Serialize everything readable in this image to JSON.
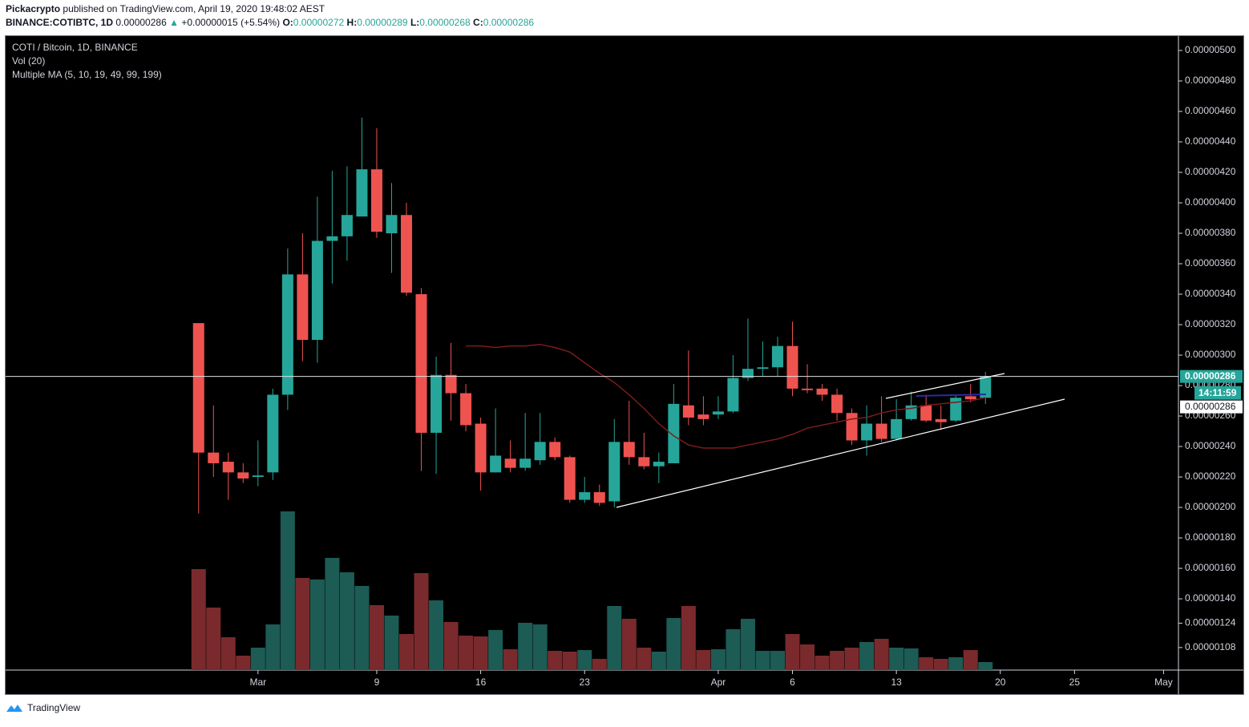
{
  "header": {
    "author": "Pickacrypto",
    "published": "published on TradingView.com, April 19, 2020 19:48:02 AEST",
    "symbol": "BINANCE:COTIBTC, 1D",
    "last": "0.00000286",
    "change": "+0.00000015 (+5.54%)",
    "o_label": "O:",
    "o": "0.00000272",
    "h_label": "H:",
    "h": "0.00000289",
    "l_label": "L:",
    "l": "0.00000268",
    "c_label": "C:",
    "c": "0.00000286"
  },
  "footer": {
    "brand": "TradingView"
  },
  "chart_data": {
    "type": "candlestick",
    "title": "COTI / Bitcoin, 1D, BINANCE",
    "x": [
      "02-26",
      "02-27",
      "02-28",
      "02-29",
      "03-01",
      "03-02",
      "03-03",
      "03-04",
      "03-05",
      "03-06",
      "03-07",
      "03-08",
      "03-09",
      "03-10",
      "03-11",
      "03-12",
      "03-13",
      "03-14",
      "03-15",
      "03-16",
      "03-17",
      "03-18",
      "03-19",
      "03-20",
      "03-21",
      "03-22",
      "03-23",
      "03-24",
      "03-25",
      "03-26",
      "03-27",
      "03-28",
      "03-29",
      "03-30",
      "03-31",
      "04-01",
      "04-02",
      "04-03",
      "04-04",
      "04-05",
      "04-06",
      "04-07",
      "04-08",
      "04-09",
      "04-10",
      "04-11",
      "04-12",
      "04-13",
      "04-14",
      "04-15",
      "04-16",
      "04-17",
      "04-18",
      "04-19"
    ],
    "open": [
      3.21e-06,
      2.36e-06,
      2.3e-06,
      2.23e-06,
      2.2e-06,
      2.23e-06,
      2.74e-06,
      3.53e-06,
      3.1e-06,
      3.75e-06,
      3.78e-06,
      3.91e-06,
      4.22e-06,
      3.8e-06,
      3.92e-06,
      3.4e-06,
      2.49e-06,
      2.87e-06,
      2.75e-06,
      2.55e-06,
      2.23e-06,
      2.32e-06,
      2.26e-06,
      2.31e-06,
      2.43e-06,
      2.33e-06,
      2.05e-06,
      2.1e-06,
      2.04e-06,
      2.43e-06,
      2.33e-06,
      2.27e-06,
      2.29e-06,
      2.67e-06,
      2.61e-06,
      2.61e-06,
      2.63e-06,
      2.85e-06,
      2.91e-06,
      2.92e-06,
      3.06e-06,
      2.78e-06,
      2.78e-06,
      2.74e-06,
      2.62e-06,
      2.44e-06,
      2.55e-06,
      2.45e-06,
      2.58e-06,
      2.67e-06,
      2.58e-06,
      2.57e-06,
      2.73e-06,
      2.72e-06
    ],
    "high": [
      3.21e-06,
      2.67e-06,
      2.36e-06,
      2.29e-06,
      2.44e-06,
      2.78e-06,
      3.7e-06,
      3.8e-06,
      4.04e-06,
      4.21e-06,
      4.24e-06,
      4.56e-06,
      4.49e-06,
      4.13e-06,
      4e-06,
      3.44e-06,
      2.99e-06,
      3.08e-06,
      2.81e-06,
      2.59e-06,
      2.65e-06,
      2.44e-06,
      2.62e-06,
      2.62e-06,
      2.46e-06,
      2.34e-06,
      2.2e-06,
      2.15e-06,
      2.58e-06,
      2.7e-06,
      2.49e-06,
      2.36e-06,
      2.81e-06,
      3.03e-06,
      2.73e-06,
      2.73e-06,
      3e-06,
      3.24e-06,
      3.09e-06,
      3.12e-06,
      3.22e-06,
      2.94e-06,
      2.81e-06,
      2.78e-06,
      2.65e-06,
      2.67e-06,
      2.73e-06,
      2.71e-06,
      2.76e-06,
      2.74e-06,
      2.67e-06,
      2.74e-06,
      2.81e-06,
      2.89e-06
    ],
    "low": [
      1.96e-06,
      2.2e-06,
      2.05e-06,
      2.16e-06,
      2.14e-06,
      2.18e-06,
      2.64e-06,
      2.96e-06,
      2.95e-06,
      3.47e-06,
      3.62e-06,
      3.91e-06,
      3.77e-06,
      3.54e-06,
      3.39e-06,
      2.24e-06,
      2.22e-06,
      2.57e-06,
      2.5e-06,
      2.11e-06,
      2.23e-06,
      2.23e-06,
      2.24e-06,
      2.28e-06,
      2.31e-06,
      2.03e-06,
      2.03e-06,
      2.01e-06,
      2e-06,
      2.28e-06,
      2.25e-06,
      2.16e-06,
      2.29e-06,
      2.54e-06,
      2.54e-06,
      2.58e-06,
      2.62e-06,
      2.83e-06,
      2.86e-06,
      2.86e-06,
      2.73e-06,
      2.75e-06,
      2.7e-06,
      2.57e-06,
      2.41e-06,
      2.34e-06,
      2.43e-06,
      2.44e-06,
      2.57e-06,
      2.56e-06,
      2.51e-06,
      2.56e-06,
      2.69e-06,
      2.68e-06
    ],
    "close": [
      2.36e-06,
      2.29e-06,
      2.23e-06,
      2.19e-06,
      2.21e-06,
      2.74e-06,
      3.53e-06,
      3.1e-06,
      3.75e-06,
      3.78e-06,
      3.92e-06,
      4.22e-06,
      3.81e-06,
      3.92e-06,
      3.41e-06,
      2.49e-06,
      2.87e-06,
      2.75e-06,
      2.54e-06,
      2.23e-06,
      2.34e-06,
      2.26e-06,
      2.32e-06,
      2.43e-06,
      2.33e-06,
      2.05e-06,
      2.1e-06,
      2.03e-06,
      2.43e-06,
      2.33e-06,
      2.27e-06,
      2.3e-06,
      2.68e-06,
      2.59e-06,
      2.58e-06,
      2.63e-06,
      2.85e-06,
      2.91e-06,
      2.92e-06,
      3.06e-06,
      2.78e-06,
      2.77e-06,
      2.74e-06,
      2.62e-06,
      2.44e-06,
      2.55e-06,
      2.45e-06,
      2.58e-06,
      2.67e-06,
      2.57e-06,
      2.56e-06,
      2.72e-06,
      2.71e-06,
      2.86e-06
    ],
    "up_color": "#26a69a",
    "down_color": "#ef5350",
    "volume": {
      "name": "Vol (20)",
      "up_color": "#1d5b55",
      "down_color": "#7a2a2c",
      "ylim": [
        0,
        792
      ],
      "values": [
        126,
        78,
        41,
        18,
        28,
        57,
        198,
        115,
        113,
        140,
        122,
        105,
        81,
        68,
        45,
        121,
        87,
        60,
        43,
        42,
        50,
        26,
        59,
        57,
        24,
        23,
        25,
        14,
        80,
        64,
        28,
        23,
        65,
        80,
        25,
        26,
        51,
        64,
        24,
        24,
        45,
        32,
        18,
        24,
        28,
        35,
        39,
        28,
        27,
        16,
        14,
        16,
        25,
        10
      ]
    },
    "ma": {
      "name": "Multiple MA (5, 10, 19, 49, 99, 199)",
      "color": "#7a1c1c",
      "values": [
        null,
        null,
        null,
        null,
        null,
        null,
        null,
        null,
        null,
        null,
        null,
        null,
        null,
        null,
        null,
        null,
        null,
        null,
        3.06e-06,
        3.06e-06,
        3.05e-06,
        3.06e-06,
        3.06e-06,
        3.07e-06,
        3.05e-06,
        3.02e-06,
        2.95e-06,
        2.88e-06,
        2.82e-06,
        2.74e-06,
        2.65e-06,
        2.55e-06,
        2.47e-06,
        2.41e-06,
        2.39e-06,
        2.39e-06,
        2.39e-06,
        2.41e-06,
        2.43e-06,
        2.45e-06,
        2.48e-06,
        2.52e-06,
        2.54e-06,
        2.56e-06,
        2.58e-06,
        2.59e-06,
        2.62e-06,
        2.64e-06,
        2.65e-06,
        2.67e-06,
        2.68e-06,
        2.69e-06,
        2.7e-06,
        2.72e-06
      ]
    },
    "ylim": [
      9.32e-07,
      5.1e-06
    ],
    "yticks": [
      {
        "value": 1.08e-06,
        "label": "0.00000108"
      },
      {
        "value": 1.24e-06,
        "label": "0.00000124"
      },
      {
        "value": 1.4e-06,
        "label": "0.00000140"
      },
      {
        "value": 1.6e-06,
        "label": "0.00000160"
      },
      {
        "value": 1.8e-06,
        "label": "0.00000180"
      },
      {
        "value": 2e-06,
        "label": "0.00000200"
      },
      {
        "value": 2.2e-06,
        "label": "0.00000220"
      },
      {
        "value": 2.4e-06,
        "label": "0.00000240"
      },
      {
        "value": 2.6e-06,
        "label": "0.00000260"
      },
      {
        "value": 2.8e-06,
        "label": "0.00000280"
      },
      {
        "value": 3e-06,
        "label": "0.00000300"
      },
      {
        "value": 3.2e-06,
        "label": "0.00000320"
      },
      {
        "value": 3.4e-06,
        "label": "0.00000340"
      },
      {
        "value": 3.6e-06,
        "label": "0.00000360"
      },
      {
        "value": 3.8e-06,
        "label": "0.00000380"
      },
      {
        "value": 4e-06,
        "label": "0.00000400"
      },
      {
        "value": 4.2e-06,
        "label": "0.00000420"
      },
      {
        "value": 4.4e-06,
        "label": "0.00000440"
      },
      {
        "value": 4.6e-06,
        "label": "0.00000460"
      },
      {
        "value": 4.8e-06,
        "label": "0.00000480"
      },
      {
        "value": 5e-06,
        "label": "0.00000500"
      }
    ],
    "xlim": [
      "02-13",
      "05-02"
    ],
    "xticks": [
      {
        "value": "03-01",
        "label": "Mar"
      },
      {
        "value": "03-09",
        "label": "9"
      },
      {
        "value": "03-16",
        "label": "16"
      },
      {
        "value": "03-23",
        "label": "23"
      },
      {
        "value": "04-01",
        "label": "Apr"
      },
      {
        "value": "04-06",
        "label": "6"
      },
      {
        "value": "04-13",
        "label": "13"
      },
      {
        "value": "04-20",
        "label": "20"
      },
      {
        "value": "04-25",
        "label": "25"
      },
      {
        "value": "05-01",
        "label": "May"
      }
    ],
    "last_price_label": "0.00000286",
    "countdown": "14:11:59",
    "crosshair_label": "0.00000286"
  }
}
